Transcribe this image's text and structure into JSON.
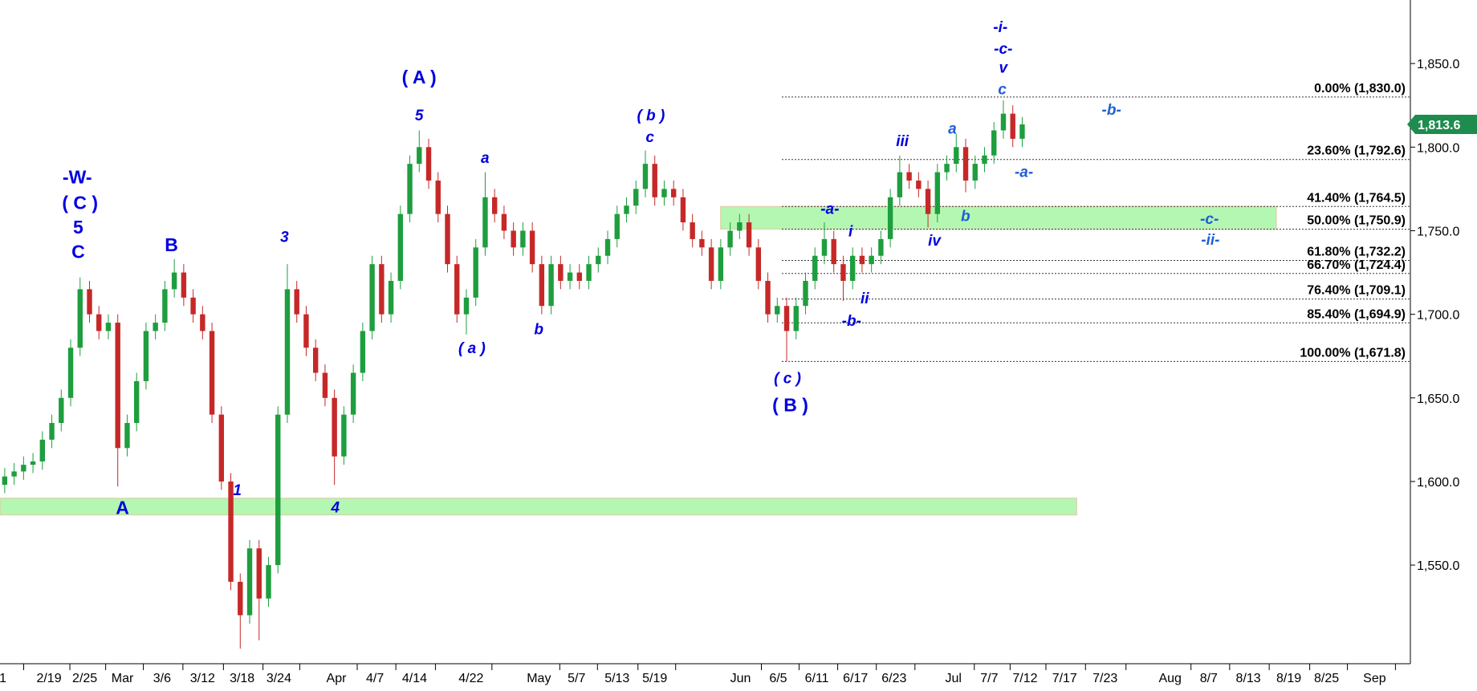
{
  "chart_data": {
    "type": "candlestick",
    "open": [
      1598,
      1603,
      1606,
      1610,
      1612,
      1625,
      1635,
      1650,
      1680,
      1715,
      1700,
      1690,
      1695,
      1620,
      1635,
      1660,
      1690,
      1695,
      1715,
      1725,
      1710,
      1700,
      1690,
      1640,
      1600,
      1540,
      1520,
      1560,
      1530,
      1550,
      1640,
      1715,
      1700,
      1680,
      1665,
      1650,
      1615,
      1640,
      1665,
      1690,
      1730,
      1700,
      1720,
      1760,
      1790,
      1800,
      1780,
      1760,
      1730,
      1700,
      1710,
      1740,
      1770,
      1760,
      1750,
      1740,
      1750,
      1730,
      1705,
      1730,
      1720,
      1725,
      1720,
      1730,
      1735,
      1745,
      1760,
      1765,
      1775,
      1790,
      1770,
      1775,
      1770,
      1755,
      1745,
      1740,
      1720,
      1740,
      1750,
      1755,
      1740,
      1720,
      1700,
      1705,
      1690,
      1705,
      1720,
      1735,
      1745,
      1730,
      1720,
      1735,
      1730,
      1735,
      1745,
      1770,
      1785,
      1780,
      1775,
      1760,
      1785,
      1790,
      1800,
      1780,
      1790,
      1795,
      1810,
      1820,
      1805
    ],
    "high": [
      1608,
      1611,
      1615,
      1617,
      1630,
      1640,
      1655,
      1685,
      1722,
      1720,
      1705,
      1700,
      1700,
      1640,
      1665,
      1695,
      1700,
      1720,
      1733,
      1730,
      1715,
      1705,
      1695,
      1645,
      1605,
      1545,
      1565,
      1565,
      1555,
      1645,
      1730,
      1720,
      1705,
      1685,
      1670,
      1655,
      1645,
      1670,
      1695,
      1735,
      1735,
      1725,
      1765,
      1795,
      1810,
      1805,
      1785,
      1765,
      1735,
      1715,
      1745,
      1785,
      1775,
      1765,
      1755,
      1755,
      1755,
      1735,
      1735,
      1735,
      1730,
      1730,
      1735,
      1740,
      1750,
      1765,
      1770,
      1780,
      1798,
      1795,
      1780,
      1780,
      1775,
      1760,
      1750,
      1745,
      1745,
      1755,
      1760,
      1760,
      1745,
      1725,
      1710,
      1710,
      1710,
      1725,
      1740,
      1755,
      1750,
      1735,
      1740,
      1740,
      1740,
      1750,
      1775,
      1795,
      1790,
      1785,
      1780,
      1790,
      1795,
      1808,
      1805,
      1795,
      1800,
      1815,
      1828,
      1825,
      1818
    ],
    "low": [
      1593,
      1598,
      1601,
      1605,
      1607,
      1620,
      1630,
      1645,
      1675,
      1695,
      1685,
      1685,
      1597,
      1615,
      1630,
      1655,
      1685,
      1690,
      1710,
      1705,
      1695,
      1685,
      1635,
      1595,
      1535,
      1500,
      1515,
      1505,
      1525,
      1545,
      1635,
      1695,
      1675,
      1660,
      1645,
      1598,
      1610,
      1635,
      1660,
      1685,
      1695,
      1695,
      1715,
      1755,
      1785,
      1775,
      1755,
      1725,
      1695,
      1688,
      1705,
      1735,
      1755,
      1745,
      1735,
      1735,
      1725,
      1700,
      1700,
      1715,
      1715,
      1715,
      1715,
      1725,
      1730,
      1740,
      1755,
      1760,
      1770,
      1765,
      1765,
      1765,
      1750,
      1740,
      1735,
      1715,
      1715,
      1735,
      1745,
      1735,
      1715,
      1695,
      1695,
      1672,
      1685,
      1700,
      1715,
      1730,
      1725,
      1708,
      1715,
      1725,
      1725,
      1730,
      1740,
      1765,
      1775,
      1770,
      1752,
      1755,
      1780,
      1785,
      1773,
      1775,
      1785,
      1790,
      1805,
      1800,
      1800
    ],
    "close": [
      1603,
      1606,
      1610,
      1612,
      1625,
      1635,
      1650,
      1680,
      1715,
      1700,
      1690,
      1695,
      1620,
      1635,
      1660,
      1690,
      1695,
      1715,
      1725,
      1710,
      1700,
      1690,
      1640,
      1600,
      1540,
      1520,
      1560,
      1530,
      1550,
      1640,
      1715,
      1700,
      1680,
      1665,
      1650,
      1615,
      1640,
      1665,
      1690,
      1730,
      1700,
      1720,
      1760,
      1790,
      1800,
      1780,
      1760,
      1730,
      1700,
      1710,
      1740,
      1770,
      1760,
      1750,
      1740,
      1750,
      1730,
      1705,
      1730,
      1720,
      1725,
      1720,
      1730,
      1735,
      1745,
      1760,
      1765,
      1775,
      1790,
      1770,
      1775,
      1770,
      1755,
      1745,
      1740,
      1720,
      1740,
      1750,
      1755,
      1740,
      1720,
      1700,
      1705,
      1690,
      1705,
      1720,
      1735,
      1745,
      1730,
      1720,
      1735,
      1730,
      1735,
      1745,
      1770,
      1785,
      1780,
      1775,
      1760,
      1785,
      1790,
      1800,
      1780,
      1790,
      1795,
      1810,
      1820,
      1805,
      1813.6
    ],
    "up_color": "#1e9e3e",
    "down_color": "#c62828",
    "xlim": [
      -0.5,
      149.2
    ],
    "xticks": [
      {
        "value": -0.2,
        "label": "1"
      },
      {
        "value": 4.7,
        "label": "2/19"
      },
      {
        "value": 8.5,
        "label": "2/25"
      },
      {
        "value": 12.5,
        "label": "Mar"
      },
      {
        "value": 16.7,
        "label": "3/6"
      },
      {
        "value": 21,
        "label": "3/12"
      },
      {
        "value": 25.2,
        "label": "3/18"
      },
      {
        "value": 29.1,
        "label": "3/24"
      },
      {
        "value": 35.2,
        "label": "Apr"
      },
      {
        "value": 39.3,
        "label": "4/7"
      },
      {
        "value": 43.5,
        "label": "4/14"
      },
      {
        "value": 49.5,
        "label": "4/22"
      },
      {
        "value": 56.7,
        "label": "May"
      },
      {
        "value": 60.7,
        "label": "5/7"
      },
      {
        "value": 65,
        "label": "5/13"
      },
      {
        "value": 69,
        "label": "5/19"
      },
      {
        "value": 78.1,
        "label": "Jun"
      },
      {
        "value": 82.1,
        "label": "6/5"
      },
      {
        "value": 86.2,
        "label": "6/11"
      },
      {
        "value": 90.3,
        "label": "6/17"
      },
      {
        "value": 94.4,
        "label": "6/23"
      },
      {
        "value": 100.7,
        "label": "Jul"
      },
      {
        "value": 104.5,
        "label": "7/7"
      },
      {
        "value": 108.3,
        "label": "7/12"
      },
      {
        "value": 112.5,
        "label": "7/17"
      },
      {
        "value": 116.8,
        "label": "7/23"
      },
      {
        "value": 123.7,
        "label": "Aug"
      },
      {
        "value": 127.8,
        "label": "8/7"
      },
      {
        "value": 132,
        "label": "8/13"
      },
      {
        "value": 136.3,
        "label": "8/19"
      },
      {
        "value": 140.3,
        "label": "8/25"
      },
      {
        "value": 145.4,
        "label": "Sep"
      }
    ],
    "ylim": [
      1491,
      1888
    ],
    "yticks": [
      {
        "value": 1550,
        "label": "1,550.0"
      },
      {
        "value": 1600,
        "label": "1,600.0"
      },
      {
        "value": 1650,
        "label": "1,650.0"
      },
      {
        "value": 1700,
        "label": "1,700.0"
      },
      {
        "value": 1750,
        "label": "1,750.0"
      },
      {
        "value": 1800,
        "label": "1,800.0"
      },
      {
        "value": 1850,
        "label": "1,850.0"
      }
    ],
    "last_price": {
      "value": 1813.6,
      "label": "1,813.6",
      "color": "#1e8c4e"
    },
    "fib_levels": [
      {
        "value": 1830,
        "label": "0.00% (1,830.0)"
      },
      {
        "value": 1792.6,
        "label": "23.60% (1,792.6)"
      },
      {
        "value": 1764.5,
        "label": "41.40% (1,764.5)"
      },
      {
        "value": 1750.9,
        "label": "50.00% (1,750.9)"
      },
      {
        "value": 1732.2,
        "label": "61.80% (1,732.2)"
      },
      {
        "value": 1724.4,
        "label": "66.70% (1,724.4)"
      },
      {
        "value": 1709.1,
        "label": "76.40% (1,709.1)"
      },
      {
        "value": 1694.9,
        "label": "85.40% (1,694.9)"
      },
      {
        "value": 1671.8,
        "label": "100.00% (1,671.8)"
      }
    ],
    "zones": [
      {
        "from": 1580,
        "to": 1590,
        "color": "#b3f7b3"
      },
      {
        "from": 1751,
        "to": 1764.5,
        "color": "#b3f7b3"
      }
    ],
    "annotations": [
      {
        "text": "-W-",
        "color": "#0000e0",
        "bold": true
      },
      {
        "text": "( C )",
        "color": "#0000e0",
        "bold": true
      },
      {
        "text": "5",
        "color": "#0000e0",
        "bold": true
      },
      {
        "text": "C",
        "color": "#0000e0",
        "bold": true
      },
      {
        "text": "B",
        "color": "#0000e0",
        "bold": true
      },
      {
        "text": "A",
        "color": "#0000e0",
        "bold": true
      },
      {
        "text": "1",
        "color": "#0000e0",
        "bold": false
      },
      {
        "text": "3",
        "color": "#0000e0",
        "bold": false
      },
      {
        "text": "4",
        "color": "#0000e0",
        "bold": false
      },
      {
        "text": "( A )",
        "color": "#0000e0",
        "bold": true
      },
      {
        "text": "5",
        "color": "#0000e0",
        "bold": false
      },
      {
        "text": "a",
        "color": "#0000e0",
        "bold": false
      },
      {
        "text": "( a )",
        "color": "#0000e0",
        "bold": false
      },
      {
        "text": "b",
        "color": "#0000e0",
        "bold": false
      },
      {
        "text": "( b )",
        "color": "#0000e0",
        "bold": false
      },
      {
        "text": "c",
        "color": "#0000e0",
        "bold": false
      },
      {
        "text": "( c )",
        "color": "#0000e0",
        "bold": false
      },
      {
        "text": "( B )",
        "color": "#0000e0",
        "bold": true
      },
      {
        "text": "-a-",
        "color": "#0000e0",
        "bold": false
      },
      {
        "text": "i",
        "color": "#0000e0",
        "bold": false
      },
      {
        "text": "ii",
        "color": "#0000e0",
        "bold": false
      },
      {
        "text": "-b-",
        "color": "#0000e0",
        "bold": false
      },
      {
        "text": "iii",
        "color": "#0000e0",
        "bold": false
      },
      {
        "text": "iv",
        "color": "#0000e0",
        "bold": false
      },
      {
        "text": "a",
        "color": "#1f5fd6",
        "bold": false
      },
      {
        "text": "b",
        "color": "#1f5fd6",
        "bold": false
      },
      {
        "text": "-i-",
        "color": "#0000e0",
        "bold": false
      },
      {
        "text": "-c-",
        "color": "#0000e0",
        "bold": false
      },
      {
        "text": "v",
        "color": "#0000e0",
        "bold": false
      },
      {
        "text": "c",
        "color": "#1f5fd6",
        "bold": false
      },
      {
        "text": "-a-",
        "color": "#1f5fd6",
        "bold": false
      },
      {
        "text": "-b-",
        "color": "#1f5fd6",
        "bold": false
      },
      {
        "text": "-c-",
        "color": "#1f5fd6",
        "bold": false
      },
      {
        "text": "-ii-",
        "color": "#1f5fd6",
        "bold": false
      }
    ]
  }
}
